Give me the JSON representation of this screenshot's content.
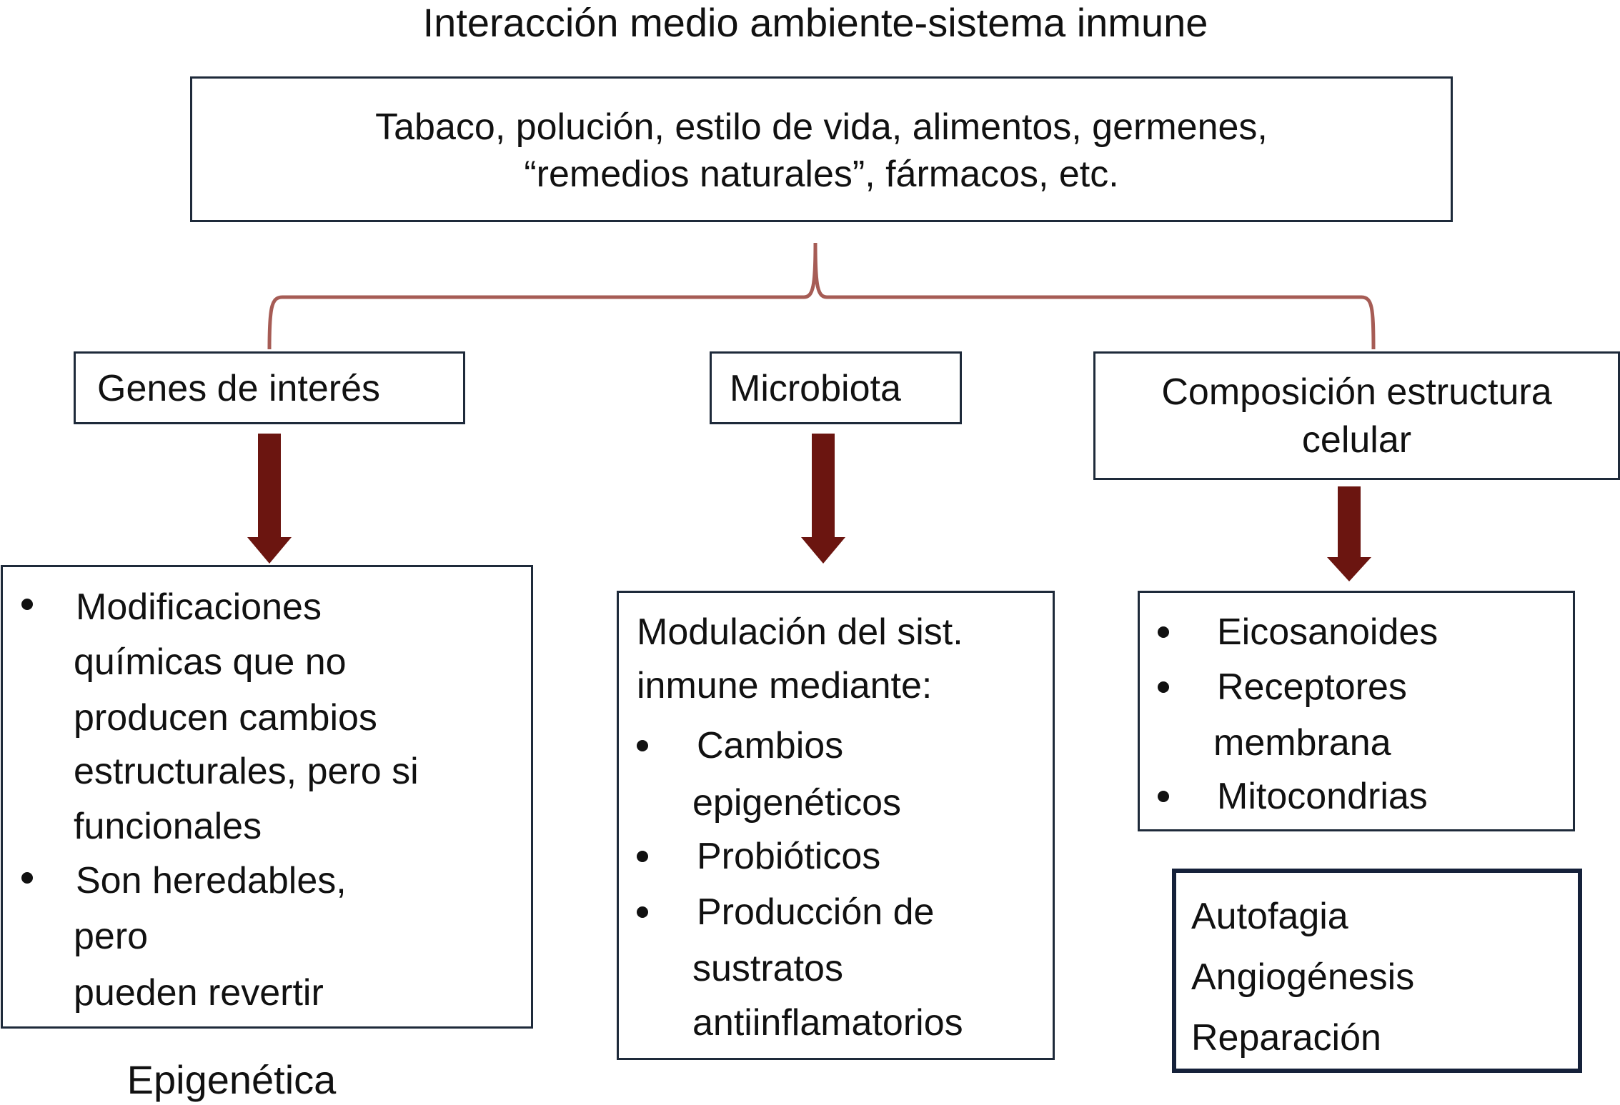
{
  "title": "Interacción medio ambiente-sistema inmune",
  "top_box": {
    "lines": [
      "Tabaco, polución, estilo de vida, alimentos, germenes,",
      "“remedios naturales”, fármacos, etc."
    ]
  },
  "branches": [
    {
      "label": "Genes de interés"
    },
    {
      "label": "Microbiota"
    },
    {
      "label_lines": [
        "Composición estructura",
        "celular"
      ]
    }
  ],
  "genes_box": {
    "items": [
      {
        "lines": [
          "Modificaciones",
          "químicas que no",
          "producen cambios",
          "estructurales, pero si",
          "funcionales"
        ]
      },
      {
        "lines": [
          "Son heredables,",
          "pero",
          "pueden revertir"
        ]
      }
    ],
    "caption": "Epigenética"
  },
  "microbiota_box": {
    "intro": [
      "Modulación del sist.",
      "inmune mediante:"
    ],
    "items": [
      {
        "lines": [
          "Cambios",
          "epigenéticos"
        ]
      },
      {
        "lines": [
          "Probióticos"
        ]
      },
      {
        "lines": [
          "Producción de",
          "sustratos",
          "antiinflamatorios"
        ]
      }
    ]
  },
  "cell_box": {
    "items": [
      {
        "lines": [
          "Eicosanoides"
        ]
      },
      {
        "lines": [
          "Receptores",
          "membrana"
        ]
      },
      {
        "lines": [
          "Mitocondrias"
        ]
      }
    ]
  },
  "process_box": {
    "lines": [
      "Autofagia",
      "Angiogénesis",
      "Reparación"
    ]
  },
  "colors": {
    "arrow": "#6b1510",
    "brace": "#a65c55",
    "border": "#1e2a3a"
  }
}
